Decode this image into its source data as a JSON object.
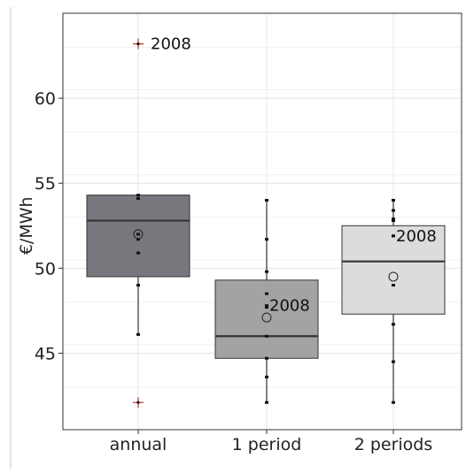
{
  "chart_data": {
    "type": "box",
    "ylabel": "€/MWh",
    "xlabel": "",
    "ylim": [
      40.5,
      65
    ],
    "yticks": [
      45,
      50,
      55,
      60
    ],
    "grid": true,
    "categories": [
      "annual",
      "1 period",
      "2 periods"
    ],
    "boxes": [
      {
        "category": "annual",
        "q1": 49.5,
        "median": 52.8,
        "q3": 54.3,
        "whisker_low": 46.1,
        "whisker_high": 54.3,
        "mean": 52.0,
        "points": [
          54.3,
          54.1,
          52.0,
          51.7,
          50.9,
          49.0,
          46.1
        ],
        "outliers": [
          {
            "value": 63.2,
            "label": "2008"
          },
          {
            "value": 42.1,
            "label": ""
          }
        ],
        "fill": "#77777d"
      },
      {
        "category": "1 period",
        "q1": 44.7,
        "median": 46.0,
        "q3": 49.3,
        "whisker_low": 42.1,
        "whisker_high": 54.0,
        "mean": 47.1,
        "points": [
          54.0,
          51.7,
          49.8,
          48.5,
          47.7,
          46.0,
          44.7,
          43.6,
          42.1
        ],
        "labeled_point": {
          "value": 47.8,
          "label": "2008"
        },
        "outliers": [],
        "fill": "#a3a3a3"
      },
      {
        "category": "2 periods",
        "q1": 47.3,
        "median": 50.4,
        "q3": 52.5,
        "whisker_low": 42.1,
        "whisker_high": 54.0,
        "mean": 49.5,
        "points": [
          54.0,
          53.4,
          52.9,
          52.8,
          51.9,
          49.0,
          46.7,
          44.5,
          42.1
        ],
        "labeled_point": {
          "value": 51.9,
          "label": "2008"
        },
        "outliers": [],
        "fill": "#dcdcdc"
      }
    ],
    "outlier_color": "#c0392b"
  }
}
